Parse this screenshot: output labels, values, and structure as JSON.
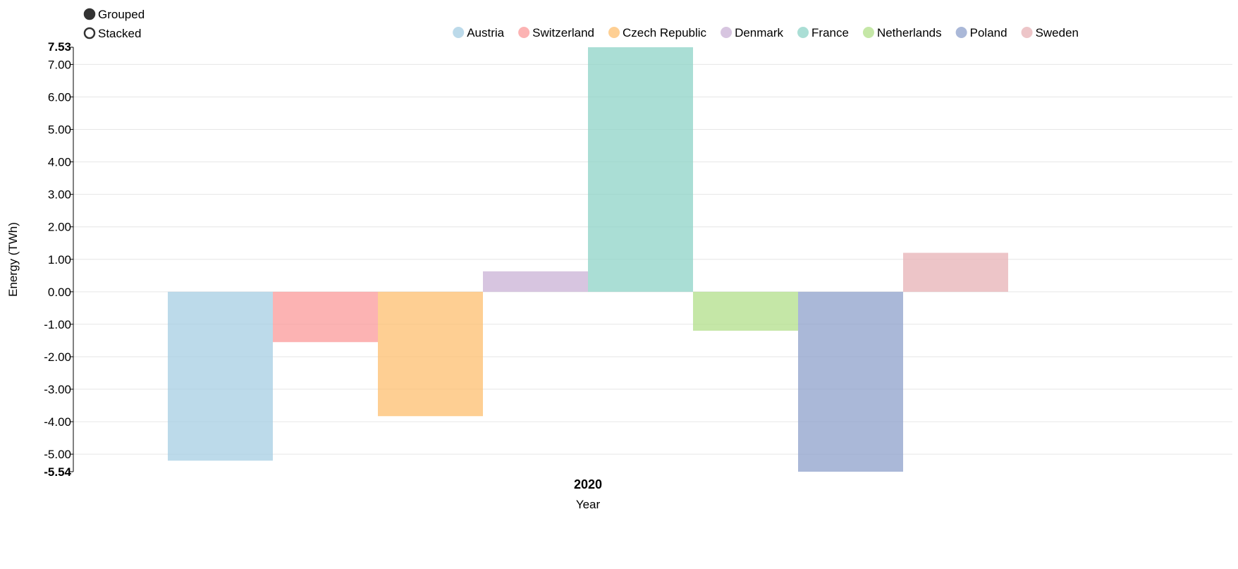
{
  "controls": {
    "modes": [
      {
        "label": "Grouped",
        "selected": true
      },
      {
        "label": "Stacked",
        "selected": false
      }
    ]
  },
  "chart_data": {
    "type": "bar",
    "categories": [
      "2020"
    ],
    "series": [
      {
        "name": "Austria",
        "values": [
          -5.2
        ],
        "color": "#a6cee3"
      },
      {
        "name": "Switzerland",
        "values": [
          -1.55
        ],
        "color": "#fb9a99"
      },
      {
        "name": "Czech Republic",
        "values": [
          -3.83
        ],
        "color": "#fdbf6f"
      },
      {
        "name": "Denmark",
        "values": [
          0.63
        ],
        "color": "#cab2d6"
      },
      {
        "name": "France",
        "values": [
          7.53
        ],
        "color": "#8dd3c7"
      },
      {
        "name": "Netherlands",
        "values": [
          -1.2
        ],
        "color": "#b2df8a"
      },
      {
        "name": "Poland",
        "values": [
          -5.54
        ],
        "color": "#8da0cb"
      },
      {
        "name": "Sweden",
        "values": [
          1.2
        ],
        "color": "#e7b1b5"
      }
    ],
    "title": "",
    "xlabel": "Year",
    "ylabel": "Energy (TWh)",
    "ylim": [
      -5.54,
      7.53
    ],
    "yticks": [
      "7.00",
      "6.00",
      "5.00",
      "4.00",
      "3.00",
      "2.00",
      "1.00",
      "0.00",
      "-1.00",
      "-2.00",
      "-3.00",
      "-4.00",
      "-5.00"
    ],
    "ytick_values": [
      7,
      6,
      5,
      4,
      3,
      2,
      1,
      0,
      -1,
      -2,
      -3,
      -4,
      -5
    ],
    "ymax_label": "7.53",
    "ymin_label": "-5.54",
    "grid": true,
    "legend_position": "top-right",
    "bar_opacity": 0.75
  }
}
